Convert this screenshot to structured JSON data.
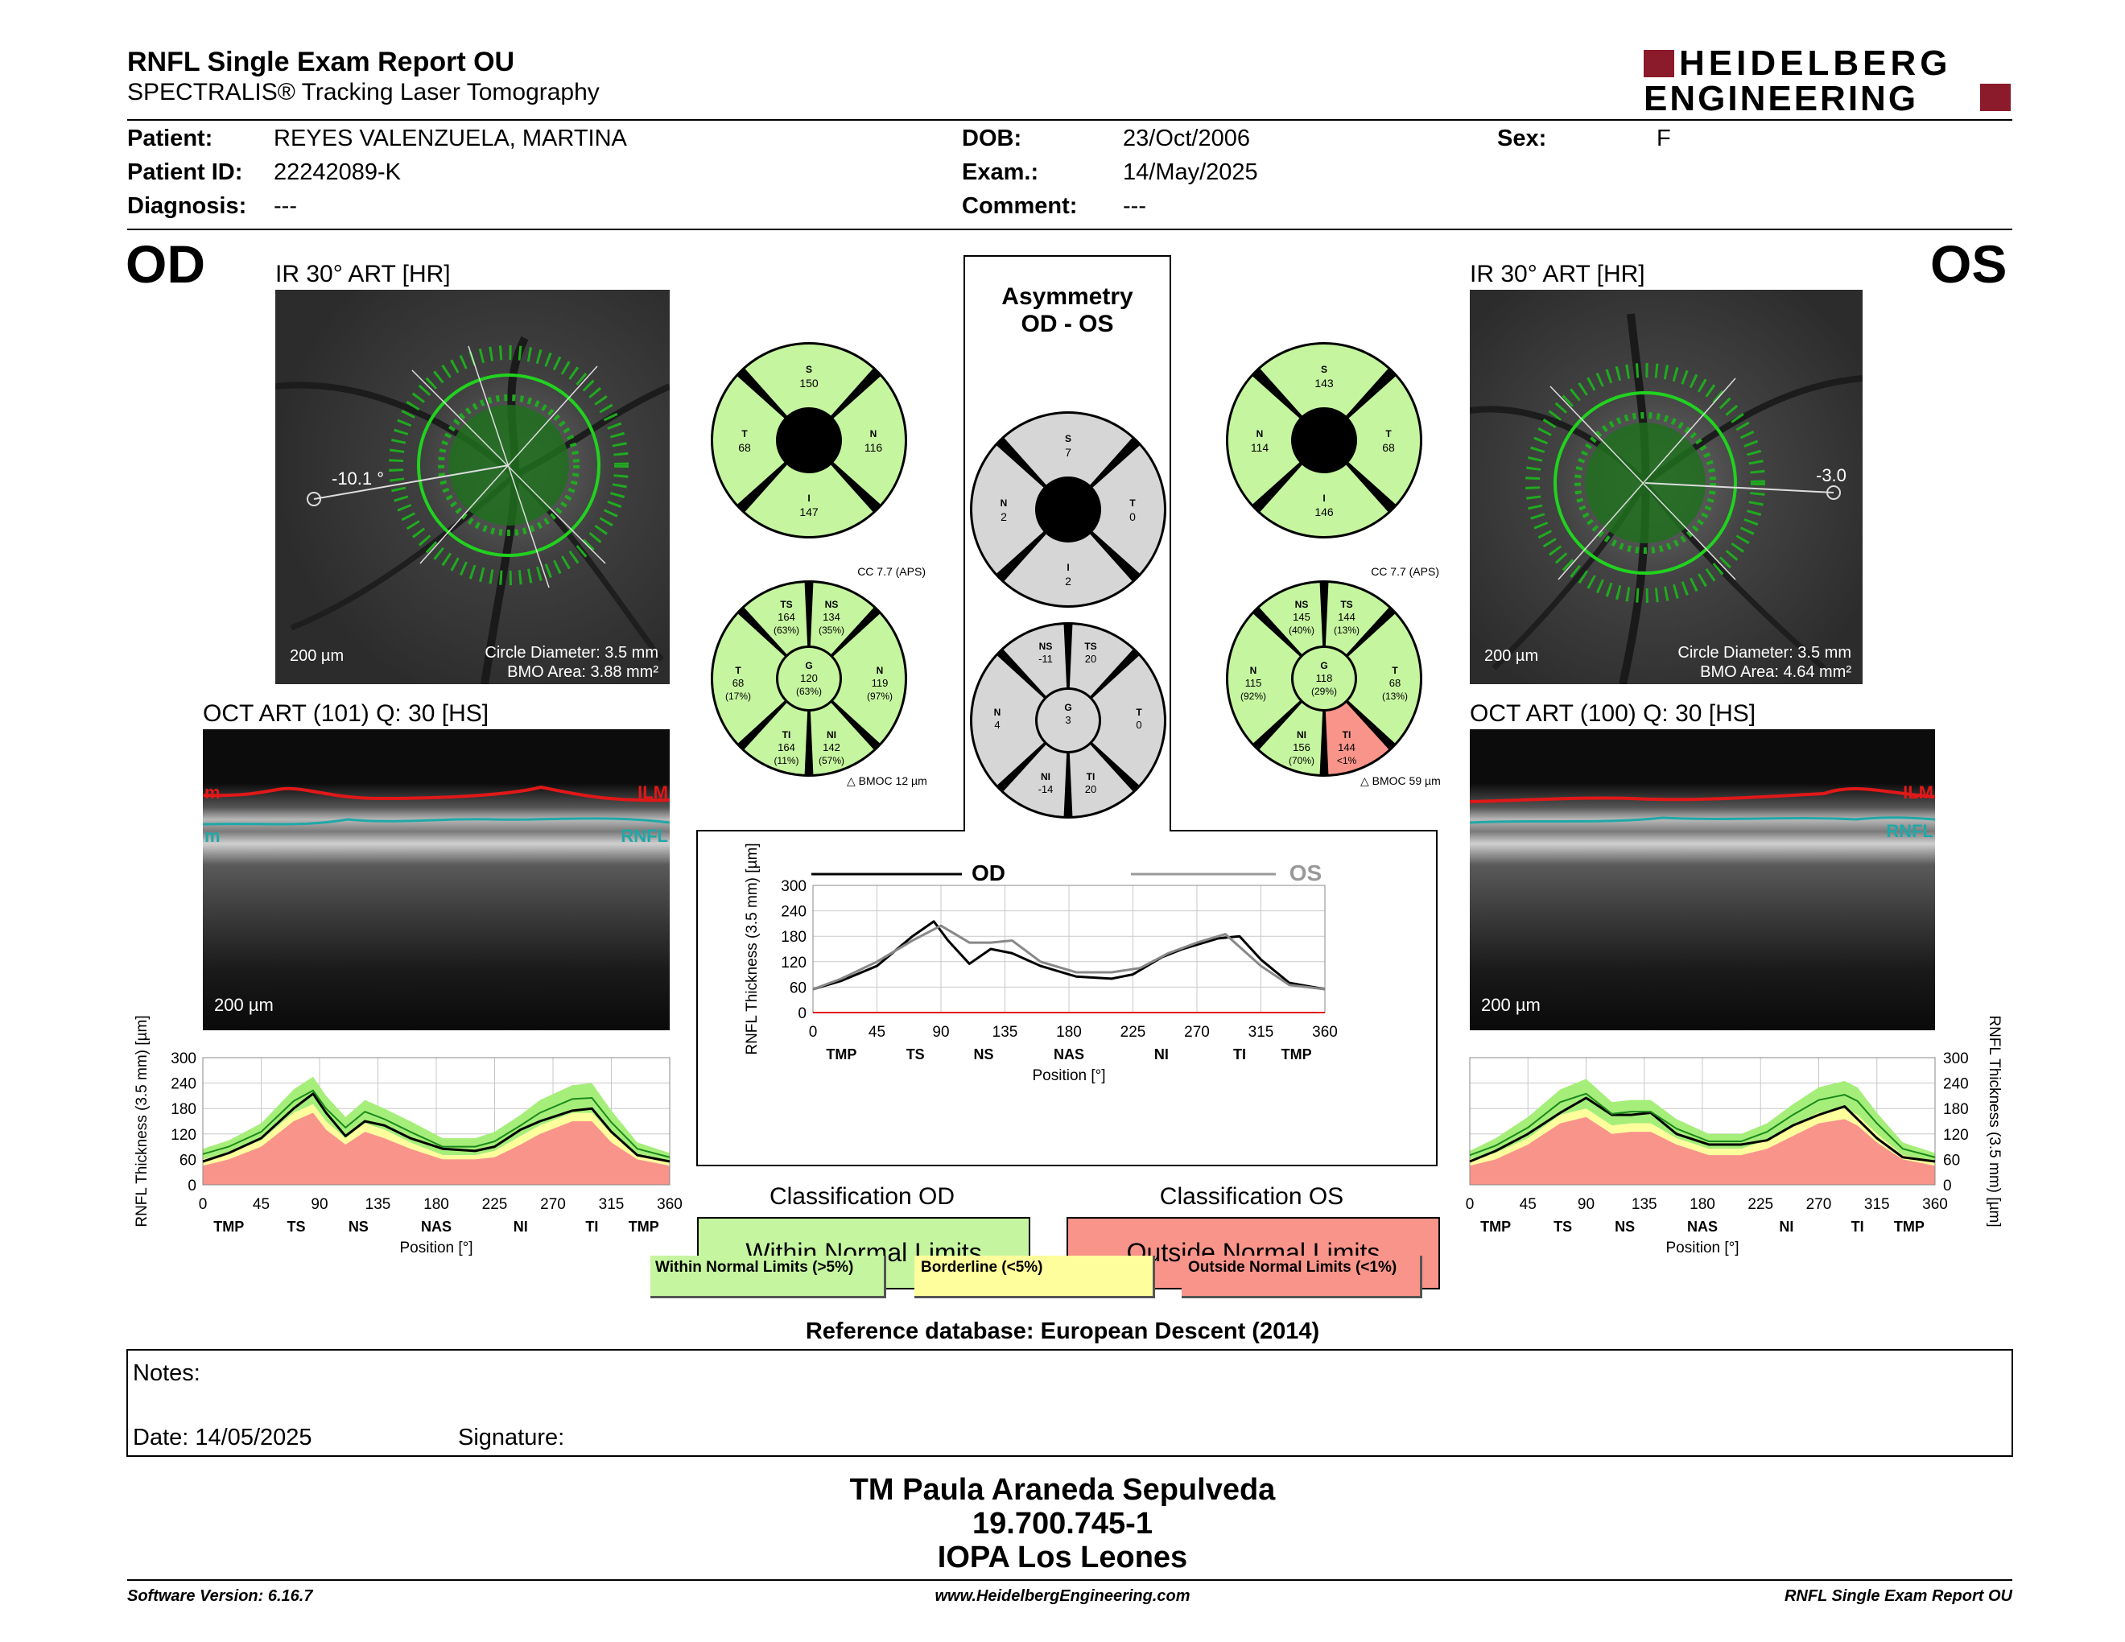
{
  "header": {
    "title": "RNFL Single Exam Report OU",
    "subtitle": "SPECTRALIS® Tracking Laser Tomography",
    "logo_line1": "HEIDELBERG",
    "logo_line2": "ENGINEERING"
  },
  "patient": {
    "name_label": "Patient:",
    "name": "REYES VALENZUELA, MARTINA",
    "id_label": "Patient ID:",
    "id": "22242089-K",
    "diagnosis_label": "Diagnosis:",
    "diagnosis": "---",
    "dob_label": "DOB:",
    "dob": "23/Oct/2006",
    "exam_label": "Exam.:",
    "exam": "14/May/2025",
    "comment_label": "Comment:",
    "comment": "---",
    "sex_label": "Sex:",
    "sex": "F"
  },
  "od": {
    "eye": "OD",
    "ir_title": "IR 30° ART [HR]",
    "angle": "-10.1 °",
    "scale": "200 µm",
    "circle": "Circle Diameter: 3.5 mm",
    "bmo": "BMO Area: 3.88 mm²",
    "oct_title": "OCT ART (101) Q: 30 [HS]",
    "oct_scale": "200 µm",
    "ilm": "ILM",
    "rnfl": "RNFL",
    "ilm_edge": "m",
    "rnfl_edge": "m",
    "sectors4": {
      "S": "150",
      "T": "68",
      "N": "116",
      "I": "147"
    },
    "cc": "CC 7.7 (APS)",
    "bmoc": "BMOC 12 µm",
    "sectors6": {
      "TS": "164",
      "TS_p": "(63%)",
      "NS": "134",
      "NS_p": "(35%)",
      "T": "68",
      "T_p": "(17%)",
      "G": "120",
      "G_p": "(63%)",
      "N": "119",
      "N_p": "(97%)",
      "TI": "164",
      "TI_p": "(11%)",
      "NI": "142",
      "NI_p": "(57%)"
    },
    "classification_title": "Classification OD",
    "classification": "Within Normal Limits"
  },
  "os": {
    "eye": "OS",
    "ir_title": "IR 30° ART [HR]",
    "angle": "-3.0",
    "scale": "200 µm",
    "circle": "Circle Diameter: 3.5 mm",
    "bmo": "BMO Area: 4.64 mm²",
    "oct_title": "OCT ART (100) Q: 30 [HS]",
    "oct_scale": "200 µm",
    "ilm": "ILM",
    "rnfl": "RNFL",
    "sectors4": {
      "S": "143",
      "N": "114",
      "T": "68",
      "I": "146"
    },
    "cc": "CC 7.7 (APS)",
    "bmoc": "BMOC 59 µm",
    "sectors6": {
      "NS": "145",
      "NS_p": "(40%)",
      "TS": "144",
      "TS_p": "(13%)",
      "N": "115",
      "N_p": "(92%)",
      "G": "118",
      "G_p": "(29%)",
      "T": "68",
      "T_p": "(13%)",
      "NI": "156",
      "NI_p": "(70%)",
      "TI": "144",
      "TI_p": "<1%"
    },
    "classification_title": "Classification OS",
    "classification": "Outside Normal Limits"
  },
  "asymmetry": {
    "title1": "Asymmetry",
    "title2": "OD - OS",
    "sectors4": {
      "S": "7",
      "N": "2",
      "T": "0",
      "I": "2"
    },
    "sectors6": {
      "NS": "-11",
      "TS": "20",
      "N": "4",
      "G": "3",
      "T": "0",
      "NI": "-14",
      "TI": "20"
    }
  },
  "chart_data": [
    {
      "type": "line",
      "id": "od_profile",
      "xlabel": "Position [°]",
      "ylabel": "RNFL Thickness (3.5 mm) [µm]",
      "ylim": [
        0,
        300
      ],
      "xlim": [
        0,
        360
      ],
      "xticks": [
        "0",
        "45",
        "90",
        "135",
        "180",
        "225",
        "270",
        "315",
        "360"
      ],
      "yticks": [
        "0",
        "60",
        "120",
        "180",
        "240",
        "300"
      ],
      "sector_labels": [
        "TMP",
        "TS",
        "NS",
        "NAS",
        "NI",
        "TI",
        "TMP"
      ],
      "x": [
        0,
        20,
        45,
        70,
        85,
        95,
        110,
        125,
        140,
        160,
        185,
        210,
        225,
        245,
        260,
        285,
        300,
        315,
        335,
        360
      ],
      "series": [
        {
          "values": [
            55,
            75,
            110,
            180,
            215,
            170,
            115,
            150,
            140,
            110,
            85,
            80,
            90,
            130,
            150,
            175,
            180,
            125,
            70,
            55
          ]
        }
      ],
      "normal_upper": [
        85,
        105,
        145,
        225,
        255,
        210,
        160,
        200,
        180,
        150,
        110,
        110,
        125,
        165,
        200,
        235,
        240,
        175,
        100,
        75
      ],
      "normal_p5": [
        60,
        75,
        105,
        170,
        190,
        150,
        110,
        145,
        130,
        100,
        70,
        70,
        80,
        115,
        140,
        170,
        170,
        120,
        70,
        55
      ],
      "normal_p1": [
        45,
        60,
        90,
        150,
        170,
        130,
        95,
        125,
        110,
        85,
        60,
        60,
        65,
        95,
        120,
        150,
        150,
        100,
        60,
        45
      ]
    },
    {
      "type": "line",
      "id": "os_profile",
      "xlabel": "Position [°]",
      "ylabel": "RNFL Thickness (3.5 mm) [µm]",
      "ylim": [
        0,
        300
      ],
      "xlim": [
        0,
        360
      ],
      "xticks": [
        "0",
        "45",
        "90",
        "135",
        "180",
        "225",
        "270",
        "315",
        "360"
      ],
      "yticks": [
        "0",
        "60",
        "120",
        "180",
        "240",
        "300"
      ],
      "sector_labels": [
        "TMP",
        "TS",
        "NS",
        "NAS",
        "NI",
        "TI",
        "TMP"
      ],
      "x": [
        0,
        20,
        45,
        70,
        90,
        110,
        125,
        140,
        160,
        185,
        210,
        230,
        250,
        270,
        290,
        300,
        315,
        335,
        360
      ],
      "series": [
        {
          "values": [
            55,
            80,
            120,
            170,
            205,
            165,
            165,
            170,
            120,
            95,
            95,
            105,
            140,
            165,
            185,
            155,
            110,
            65,
            55
          ]
        }
      ],
      "normal_upper": [
        80,
        110,
        160,
        225,
        250,
        195,
        200,
        200,
        155,
        120,
        120,
        145,
        190,
        230,
        245,
        230,
        170,
        100,
        75
      ],
      "normal_p5": [
        60,
        75,
        110,
        165,
        180,
        140,
        145,
        145,
        110,
        85,
        85,
        105,
        140,
        170,
        180,
        165,
        120,
        70,
        55
      ],
      "normal_p1": [
        45,
        60,
        95,
        145,
        160,
        120,
        125,
        125,
        95,
        70,
        70,
        85,
        115,
        145,
        155,
        140,
        100,
        60,
        45
      ]
    },
    {
      "type": "line",
      "id": "asymmetry_profile",
      "xlabel": "Position [°]",
      "ylabel": "RNFL Thickness (3.5 mm) [µm]",
      "ylim": [
        0,
        300
      ],
      "xlim": [
        0,
        360
      ],
      "xticks": [
        "0",
        "45",
        "90",
        "135",
        "180",
        "225",
        "270",
        "315",
        "360"
      ],
      "yticks": [
        "0",
        "60",
        "120",
        "180",
        "240",
        "300"
      ],
      "sector_labels": [
        "TMP",
        "TS",
        "NS",
        "NAS",
        "NI",
        "TI",
        "TMP"
      ],
      "series": [
        {
          "name": "OD",
          "x": [
            0,
            20,
            45,
            70,
            85,
            95,
            110,
            125,
            140,
            160,
            185,
            210,
            225,
            245,
            260,
            285,
            300,
            315,
            335,
            360
          ],
          "values": [
            55,
            75,
            110,
            180,
            215,
            170,
            115,
            150,
            140,
            110,
            85,
            80,
            90,
            130,
            150,
            175,
            180,
            125,
            70,
            55
          ]
        },
        {
          "name": "OS",
          "x": [
            0,
            20,
            45,
            70,
            90,
            110,
            125,
            140,
            160,
            185,
            210,
            230,
            250,
            270,
            290,
            300,
            315,
            335,
            360
          ],
          "values": [
            55,
            80,
            120,
            170,
            205,
            165,
            165,
            170,
            120,
            95,
            95,
            105,
            140,
            165,
            185,
            155,
            110,
            65,
            55
          ]
        }
      ]
    }
  ],
  "legend": {
    "within": "Within Normal Limits (>5%)",
    "borderline": "Borderline (<5%)",
    "outside": "Outside Normal Limits (<1%)"
  },
  "reference": "Reference database: European Descent (2014)",
  "notes": {
    "label": "Notes:",
    "date": "Date: 14/05/2025",
    "signature": "Signature:"
  },
  "signature_block": {
    "line1": "TM Paula Araneda Sepulveda",
    "line2": "19.700.745-1",
    "line3": "IOPA Los Leones"
  },
  "footer": {
    "version": "Software Version: 6.16.7",
    "url": "www.HeidelbergEngineering.com",
    "report": "RNFL Single Exam Report OU"
  },
  "colors": {
    "green": "#c6f5a0",
    "yellow": "#fefe9c",
    "red": "#f9948a",
    "grey": "#d6d6d6",
    "ilm": "#e11818",
    "rnfl": "#20a8a8",
    "scan": "#1fbf1f"
  }
}
